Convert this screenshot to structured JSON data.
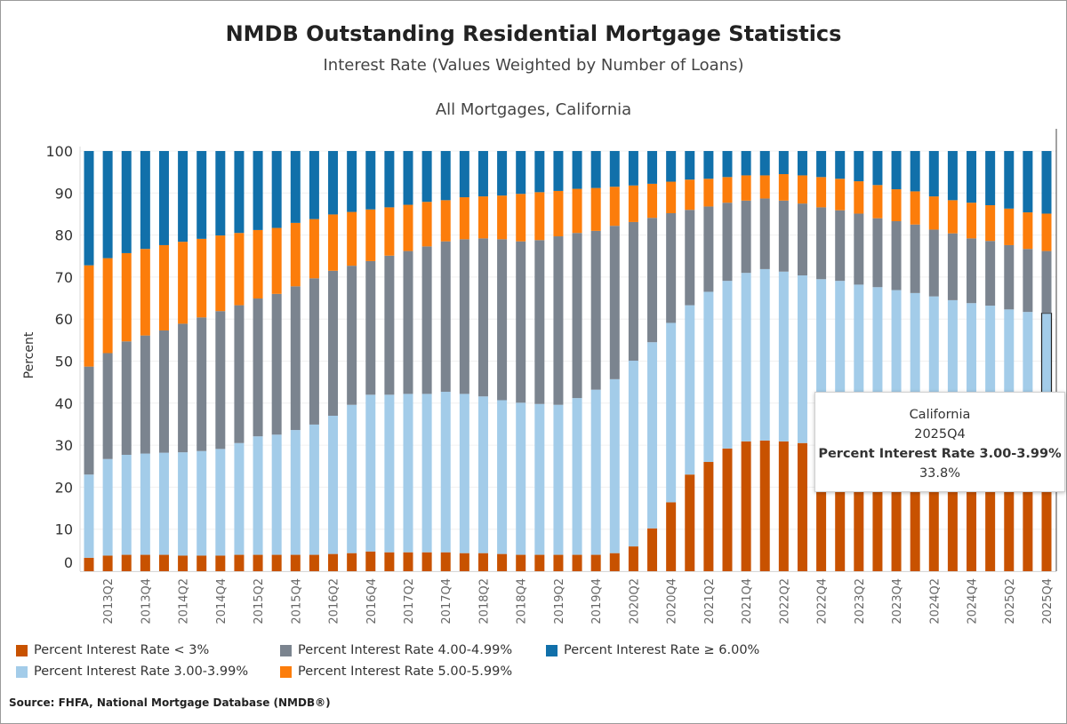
{
  "header": {
    "title": "NMDB Outstanding Residential Mortgage Statistics",
    "subtitle": "Interest Rate (Values Weighted by Number of Loans)"
  },
  "chart_data": {
    "type": "bar",
    "stacked": true,
    "title": "All Mortgages,  California",
    "xlabel": "",
    "ylabel": "Percent",
    "ylim": [
      0,
      100
    ],
    "yticks": [
      0,
      10,
      20,
      30,
      40,
      50,
      60,
      70,
      80,
      90,
      100
    ],
    "grid": true,
    "legend_position": "bottom",
    "categories": [
      "2013Q1",
      "2013Q2",
      "2013Q3",
      "2013Q4",
      "2014Q1",
      "2014Q2",
      "2014Q3",
      "2014Q4",
      "2015Q1",
      "2015Q2",
      "2015Q3",
      "2015Q4",
      "2016Q1",
      "2016Q2",
      "2016Q3",
      "2016Q4",
      "2017Q1",
      "2017Q2",
      "2017Q3",
      "2017Q4",
      "2018Q1",
      "2018Q2",
      "2018Q3",
      "2018Q4",
      "2019Q1",
      "2019Q2",
      "2019Q3",
      "2019Q4",
      "2020Q1",
      "2020Q2",
      "2020Q3",
      "2020Q4",
      "2021Q1",
      "2021Q2",
      "2021Q3",
      "2021Q4",
      "2022Q1",
      "2022Q2",
      "2022Q3",
      "2022Q4",
      "2023Q1",
      "2023Q2",
      "2023Q3",
      "2023Q4",
      "2024Q1",
      "2024Q2",
      "2024Q3",
      "2024Q4",
      "2025Q1",
      "2025Q2",
      "2025Q3",
      "2025Q4"
    ],
    "tick_labels": [
      "2013Q2",
      "2013Q4",
      "2014Q2",
      "2014Q4",
      "2015Q2",
      "2015Q4",
      "2016Q2",
      "2016Q4",
      "2017Q2",
      "2017Q4",
      "2018Q2",
      "2018Q4",
      "2019Q2",
      "2019Q4",
      "2020Q2",
      "2020Q4",
      "2021Q2",
      "2021Q4",
      "2022Q2",
      "2022Q4",
      "2023Q2",
      "2023Q4",
      "2024Q2",
      "2024Q4",
      "2025Q2",
      "2025Q4"
    ],
    "series": [
      {
        "name": "Percent Interest Rate < 3%",
        "color": "#c85200",
        "values": [
          3.2,
          3.7,
          3.9,
          3.9,
          3.9,
          3.7,
          3.7,
          3.7,
          3.9,
          3.9,
          3.9,
          3.9,
          3.9,
          4.1,
          4.3,
          4.7,
          4.5,
          4.5,
          4.5,
          4.5,
          4.3,
          4.3,
          4.1,
          3.9,
          3.9,
          3.9,
          3.9,
          3.9,
          4.3,
          5.9,
          10.2,
          16.4,
          23.0,
          26.0,
          29.2,
          30.9,
          31.1,
          30.9,
          30.5,
          30.3,
          30.1,
          29.9,
          29.7,
          29.5,
          29.3,
          29.1,
          28.9,
          28.6,
          28.3,
          28.1,
          27.8,
          27.6
        ]
      },
      {
        "name": "Percent Interest Rate 3.00-3.99%",
        "color": "#a3cce9",
        "values": [
          19.8,
          23.0,
          23.8,
          24.1,
          24.3,
          24.6,
          24.9,
          25.4,
          26.6,
          28.2,
          28.6,
          29.7,
          31.0,
          32.9,
          35.3,
          37.3,
          37.5,
          37.7,
          37.7,
          38.2,
          37.9,
          37.3,
          36.6,
          36.2,
          35.9,
          35.7,
          37.3,
          39.3,
          41.4,
          44.2,
          44.3,
          42.7,
          40.3,
          40.5,
          39.9,
          40.1,
          40.8,
          40.4,
          39.9,
          39.2,
          39.0,
          38.3,
          37.9,
          37.4,
          36.9,
          36.3,
          35.6,
          35.2,
          34.9,
          34.2,
          33.9,
          33.8
        ]
      },
      {
        "name": "Percent Interest Rate 4.00-4.99%",
        "color": "#7b848f",
        "values": [
          25.7,
          25.2,
          27.0,
          28.1,
          29.1,
          30.6,
          31.8,
          32.8,
          32.8,
          32.8,
          33.5,
          34.2,
          34.8,
          34.5,
          33.1,
          31.8,
          33.1,
          34.0,
          35.1,
          35.8,
          36.8,
          37.6,
          38.3,
          38.4,
          39.0,
          40.1,
          39.3,
          37.8,
          36.5,
          33.0,
          29.6,
          26.1,
          22.7,
          20.3,
          18.6,
          17.2,
          16.8,
          16.9,
          17.1,
          17.1,
          16.8,
          16.9,
          16.4,
          16.4,
          16.3,
          15.9,
          15.9,
          15.4,
          15.4,
          15.3,
          15.0,
          14.8
        ]
      },
      {
        "name": "Percent Interest Rate 5.00-5.99%",
        "color": "#fc7d0b",
        "values": [
          24.1,
          22.6,
          21.0,
          20.6,
          20.3,
          19.5,
          18.7,
          18.0,
          17.2,
          16.3,
          15.7,
          15.1,
          14.1,
          13.4,
          12.8,
          12.3,
          11.5,
          11.0,
          10.6,
          9.8,
          10.0,
          10.0,
          10.4,
          11.3,
          11.4,
          10.8,
          10.5,
          10.2,
          9.3,
          8.7,
          8.1,
          7.5,
          7.2,
          6.6,
          6.1,
          6.0,
          5.5,
          6.3,
          6.7,
          7.2,
          7.5,
          7.7,
          7.9,
          7.6,
          7.9,
          7.9,
          7.9,
          8.5,
          8.5,
          8.7,
          8.7,
          8.9
        ]
      },
      {
        "name": "Percent Interest Rate ≥ 6.00%",
        "color": "#1170aa",
        "values": [
          27.2,
          25.5,
          24.3,
          23.3,
          22.4,
          21.6,
          20.9,
          20.1,
          19.5,
          18.8,
          18.3,
          17.1,
          16.2,
          15.1,
          14.5,
          13.9,
          13.4,
          12.8,
          12.1,
          11.7,
          11.0,
          10.8,
          10.6,
          10.2,
          9.8,
          9.5,
          9.0,
          8.8,
          8.5,
          8.2,
          7.8,
          7.3,
          6.8,
          6.6,
          6.2,
          5.8,
          5.8,
          5.5,
          5.8,
          6.2,
          6.6,
          7.2,
          8.1,
          9.1,
          9.6,
          10.8,
          11.7,
          12.3,
          12.9,
          13.7,
          14.6,
          14.9
        ]
      }
    ],
    "legend_order": [
      0,
      2,
      4,
      1,
      3
    ]
  },
  "tooltip": {
    "region": "California",
    "quarter": "2025Q4",
    "measure": "Percent Interest Rate 3.00-3.99%",
    "value": "33.8%",
    "series_index": 1,
    "category_index": 51
  },
  "footer": {
    "source": "Source:  FHFA, National Mortgage Database (NMDB®)"
  }
}
